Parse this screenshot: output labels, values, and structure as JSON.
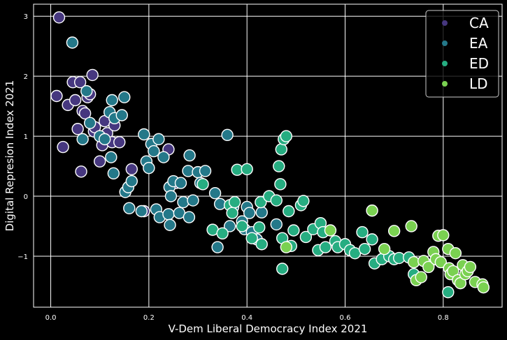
{
  "chart_data": {
    "type": "scatter",
    "title": "",
    "xlabel": "V-Dem Liberal Democracy Index 2021",
    "ylabel": "Digital Represion Index 2021",
    "xlim": [
      -0.035,
      0.92
    ],
    "ylim": [
      -1.85,
      3.2
    ],
    "xticks": [
      0.0,
      0.2,
      0.4,
      0.6,
      0.8
    ],
    "xtick_labels": [
      "0.0",
      "0.2",
      "0.4",
      "0.6",
      "0.8"
    ],
    "yticks": [
      -1,
      0,
      1,
      2,
      3
    ],
    "ytick_labels": [
      "−1",
      "0",
      "1",
      "2",
      "3"
    ],
    "grid": true,
    "legend_position": "top-right",
    "marker_edge_color": "#ffffff",
    "series": [
      {
        "name": "CA",
        "color": "#46377f",
        "points": [
          [
            0.017,
            2.98
          ],
          [
            0.012,
            1.67
          ],
          [
            0.025,
            0.82
          ],
          [
            0.035,
            1.52
          ],
          [
            0.045,
            1.9
          ],
          [
            0.05,
            1.6
          ],
          [
            0.055,
            1.12
          ],
          [
            0.06,
            1.9
          ],
          [
            0.062,
            0.41
          ],
          [
            0.065,
            1.42
          ],
          [
            0.07,
            1.38
          ],
          [
            0.075,
            1.65
          ],
          [
            0.08,
            1.7
          ],
          [
            0.085,
            2.02
          ],
          [
            0.088,
            1.08
          ],
          [
            0.09,
            1.15
          ],
          [
            0.1,
            0.58
          ],
          [
            0.105,
            0.85
          ],
          [
            0.11,
            1.25
          ],
          [
            0.115,
            1.05
          ],
          [
            0.125,
            0.9
          ],
          [
            0.13,
            1.18
          ],
          [
            0.14,
            0.9
          ],
          [
            0.165,
            0.45
          ],
          [
            0.19,
            -0.25
          ],
          [
            0.24,
            0.78
          ],
          [
            0.255,
            0.22
          ]
        ]
      },
      {
        "name": "EA",
        "color": "#247889",
        "points": [
          [
            0.044,
            2.56
          ],
          [
            0.065,
            0.95
          ],
          [
            0.073,
            1.75
          ],
          [
            0.08,
            1.22
          ],
          [
            0.1,
            1.0
          ],
          [
            0.11,
            0.95
          ],
          [
            0.12,
            1.4
          ],
          [
            0.123,
            0.65
          ],
          [
            0.125,
            1.6
          ],
          [
            0.128,
            0.38
          ],
          [
            0.13,
            1.3
          ],
          [
            0.145,
            1.35
          ],
          [
            0.15,
            1.65
          ],
          [
            0.152,
            0.07
          ],
          [
            0.158,
            0.15
          ],
          [
            0.16,
            -0.2
          ],
          [
            0.165,
            0.25
          ],
          [
            0.185,
            -0.25
          ],
          [
            0.19,
            1.03
          ],
          [
            0.195,
            0.58
          ],
          [
            0.2,
            0.47
          ],
          [
            0.205,
            0.87
          ],
          [
            0.21,
            0.75
          ],
          [
            0.215,
            -0.22
          ],
          [
            0.22,
            0.95
          ],
          [
            0.222,
            -0.35
          ],
          [
            0.23,
            0.65
          ],
          [
            0.24,
            -0.3
          ],
          [
            0.242,
            0.15
          ],
          [
            0.243,
            -0.48
          ],
          [
            0.245,
            0.0
          ],
          [
            0.25,
            0.25
          ],
          [
            0.262,
            -0.28
          ],
          [
            0.265,
            0.22
          ],
          [
            0.27,
            -0.1
          ],
          [
            0.28,
            0.42
          ],
          [
            0.282,
            -0.35
          ],
          [
            0.283,
            0.68
          ],
          [
            0.29,
            -0.07
          ],
          [
            0.3,
            0.4
          ],
          [
            0.305,
            0.22
          ],
          [
            0.315,
            0.42
          ],
          [
            0.335,
            0.05
          ],
          [
            0.34,
            -0.85
          ],
          [
            0.345,
            -0.13
          ],
          [
            0.36,
            1.02
          ],
          [
            0.365,
            -0.5
          ],
          [
            0.372,
            -0.18
          ],
          [
            0.39,
            -0.42
          ],
          [
            0.395,
            -0.55
          ],
          [
            0.4,
            -0.18
          ],
          [
            0.405,
            -0.28
          ],
          [
            0.41,
            -0.6
          ],
          [
            0.42,
            -0.72
          ],
          [
            0.43,
            -0.27
          ],
          [
            0.46,
            -0.47
          ]
        ]
      },
      {
        "name": "ED",
        "color": "#26ad81",
        "points": [
          [
            0.31,
            0.2
          ],
          [
            0.33,
            -0.56
          ],
          [
            0.35,
            -0.62
          ],
          [
            0.365,
            -0.15
          ],
          [
            0.37,
            -0.28
          ],
          [
            0.375,
            -0.1
          ],
          [
            0.38,
            0.44
          ],
          [
            0.39,
            -0.5
          ],
          [
            0.4,
            0.45
          ],
          [
            0.41,
            -0.7
          ],
          [
            0.425,
            -0.52
          ],
          [
            0.428,
            -0.1
          ],
          [
            0.43,
            -0.8
          ],
          [
            0.445,
            0.0
          ],
          [
            0.46,
            -0.07
          ],
          [
            0.465,
            0.5
          ],
          [
            0.468,
            0.2
          ],
          [
            0.47,
            0.78
          ],
          [
            0.472,
            -0.7
          ],
          [
            0.475,
            0.95
          ],
          [
            0.48,
            1.0
          ],
          [
            0.472,
            -1.21
          ],
          [
            0.485,
            -0.25
          ],
          [
            0.49,
            -0.83
          ],
          [
            0.495,
            -0.57
          ],
          [
            0.51,
            -0.15
          ],
          [
            0.515,
            -0.08
          ],
          [
            0.52,
            -0.68
          ],
          [
            0.535,
            -0.55
          ],
          [
            0.545,
            -0.9
          ],
          [
            0.55,
            -0.45
          ],
          [
            0.555,
            -0.6
          ],
          [
            0.56,
            -0.85
          ],
          [
            0.58,
            -0.75
          ],
          [
            0.585,
            -0.85
          ],
          [
            0.6,
            -0.8
          ],
          [
            0.61,
            -0.9
          ],
          [
            0.62,
            -0.95
          ],
          [
            0.635,
            -0.6
          ],
          [
            0.64,
            -0.88
          ],
          [
            0.655,
            -0.72
          ],
          [
            0.66,
            -1.12
          ],
          [
            0.675,
            -1.05
          ],
          [
            0.69,
            -1.0
          ],
          [
            0.7,
            -1.05
          ],
          [
            0.71,
            -1.03
          ],
          [
            0.73,
            -1.02
          ],
          [
            0.74,
            -1.3
          ],
          [
            0.77,
            -1.15
          ],
          [
            0.81,
            -1.6
          ]
        ]
      },
      {
        "name": "LD",
        "color": "#7ad151",
        "points": [
          [
            0.48,
            -0.85
          ],
          [
            0.57,
            -0.57
          ],
          [
            0.655,
            -0.24
          ],
          [
            0.68,
            -0.88
          ],
          [
            0.7,
            -0.58
          ],
          [
            0.735,
            -0.5
          ],
          [
            0.74,
            -1.1
          ],
          [
            0.745,
            -1.4
          ],
          [
            0.755,
            -1.35
          ],
          [
            0.76,
            -1.08
          ],
          [
            0.77,
            -1.18
          ],
          [
            0.78,
            -0.93
          ],
          [
            0.785,
            -1.05
          ],
          [
            0.79,
            -0.66
          ],
          [
            0.795,
            -1.1
          ],
          [
            0.8,
            -0.65
          ],
          [
            0.81,
            -0.88
          ],
          [
            0.812,
            -1.2
          ],
          [
            0.815,
            -1.3
          ],
          [
            0.82,
            -1.25
          ],
          [
            0.825,
            -0.95
          ],
          [
            0.83,
            -1.4
          ],
          [
            0.835,
            -1.45
          ],
          [
            0.84,
            -1.15
          ],
          [
            0.845,
            -1.3
          ],
          [
            0.85,
            -1.25
          ],
          [
            0.855,
            -1.18
          ],
          [
            0.865,
            -1.43
          ],
          [
            0.88,
            -1.47
          ],
          [
            0.882,
            -1.52
          ]
        ]
      }
    ]
  }
}
